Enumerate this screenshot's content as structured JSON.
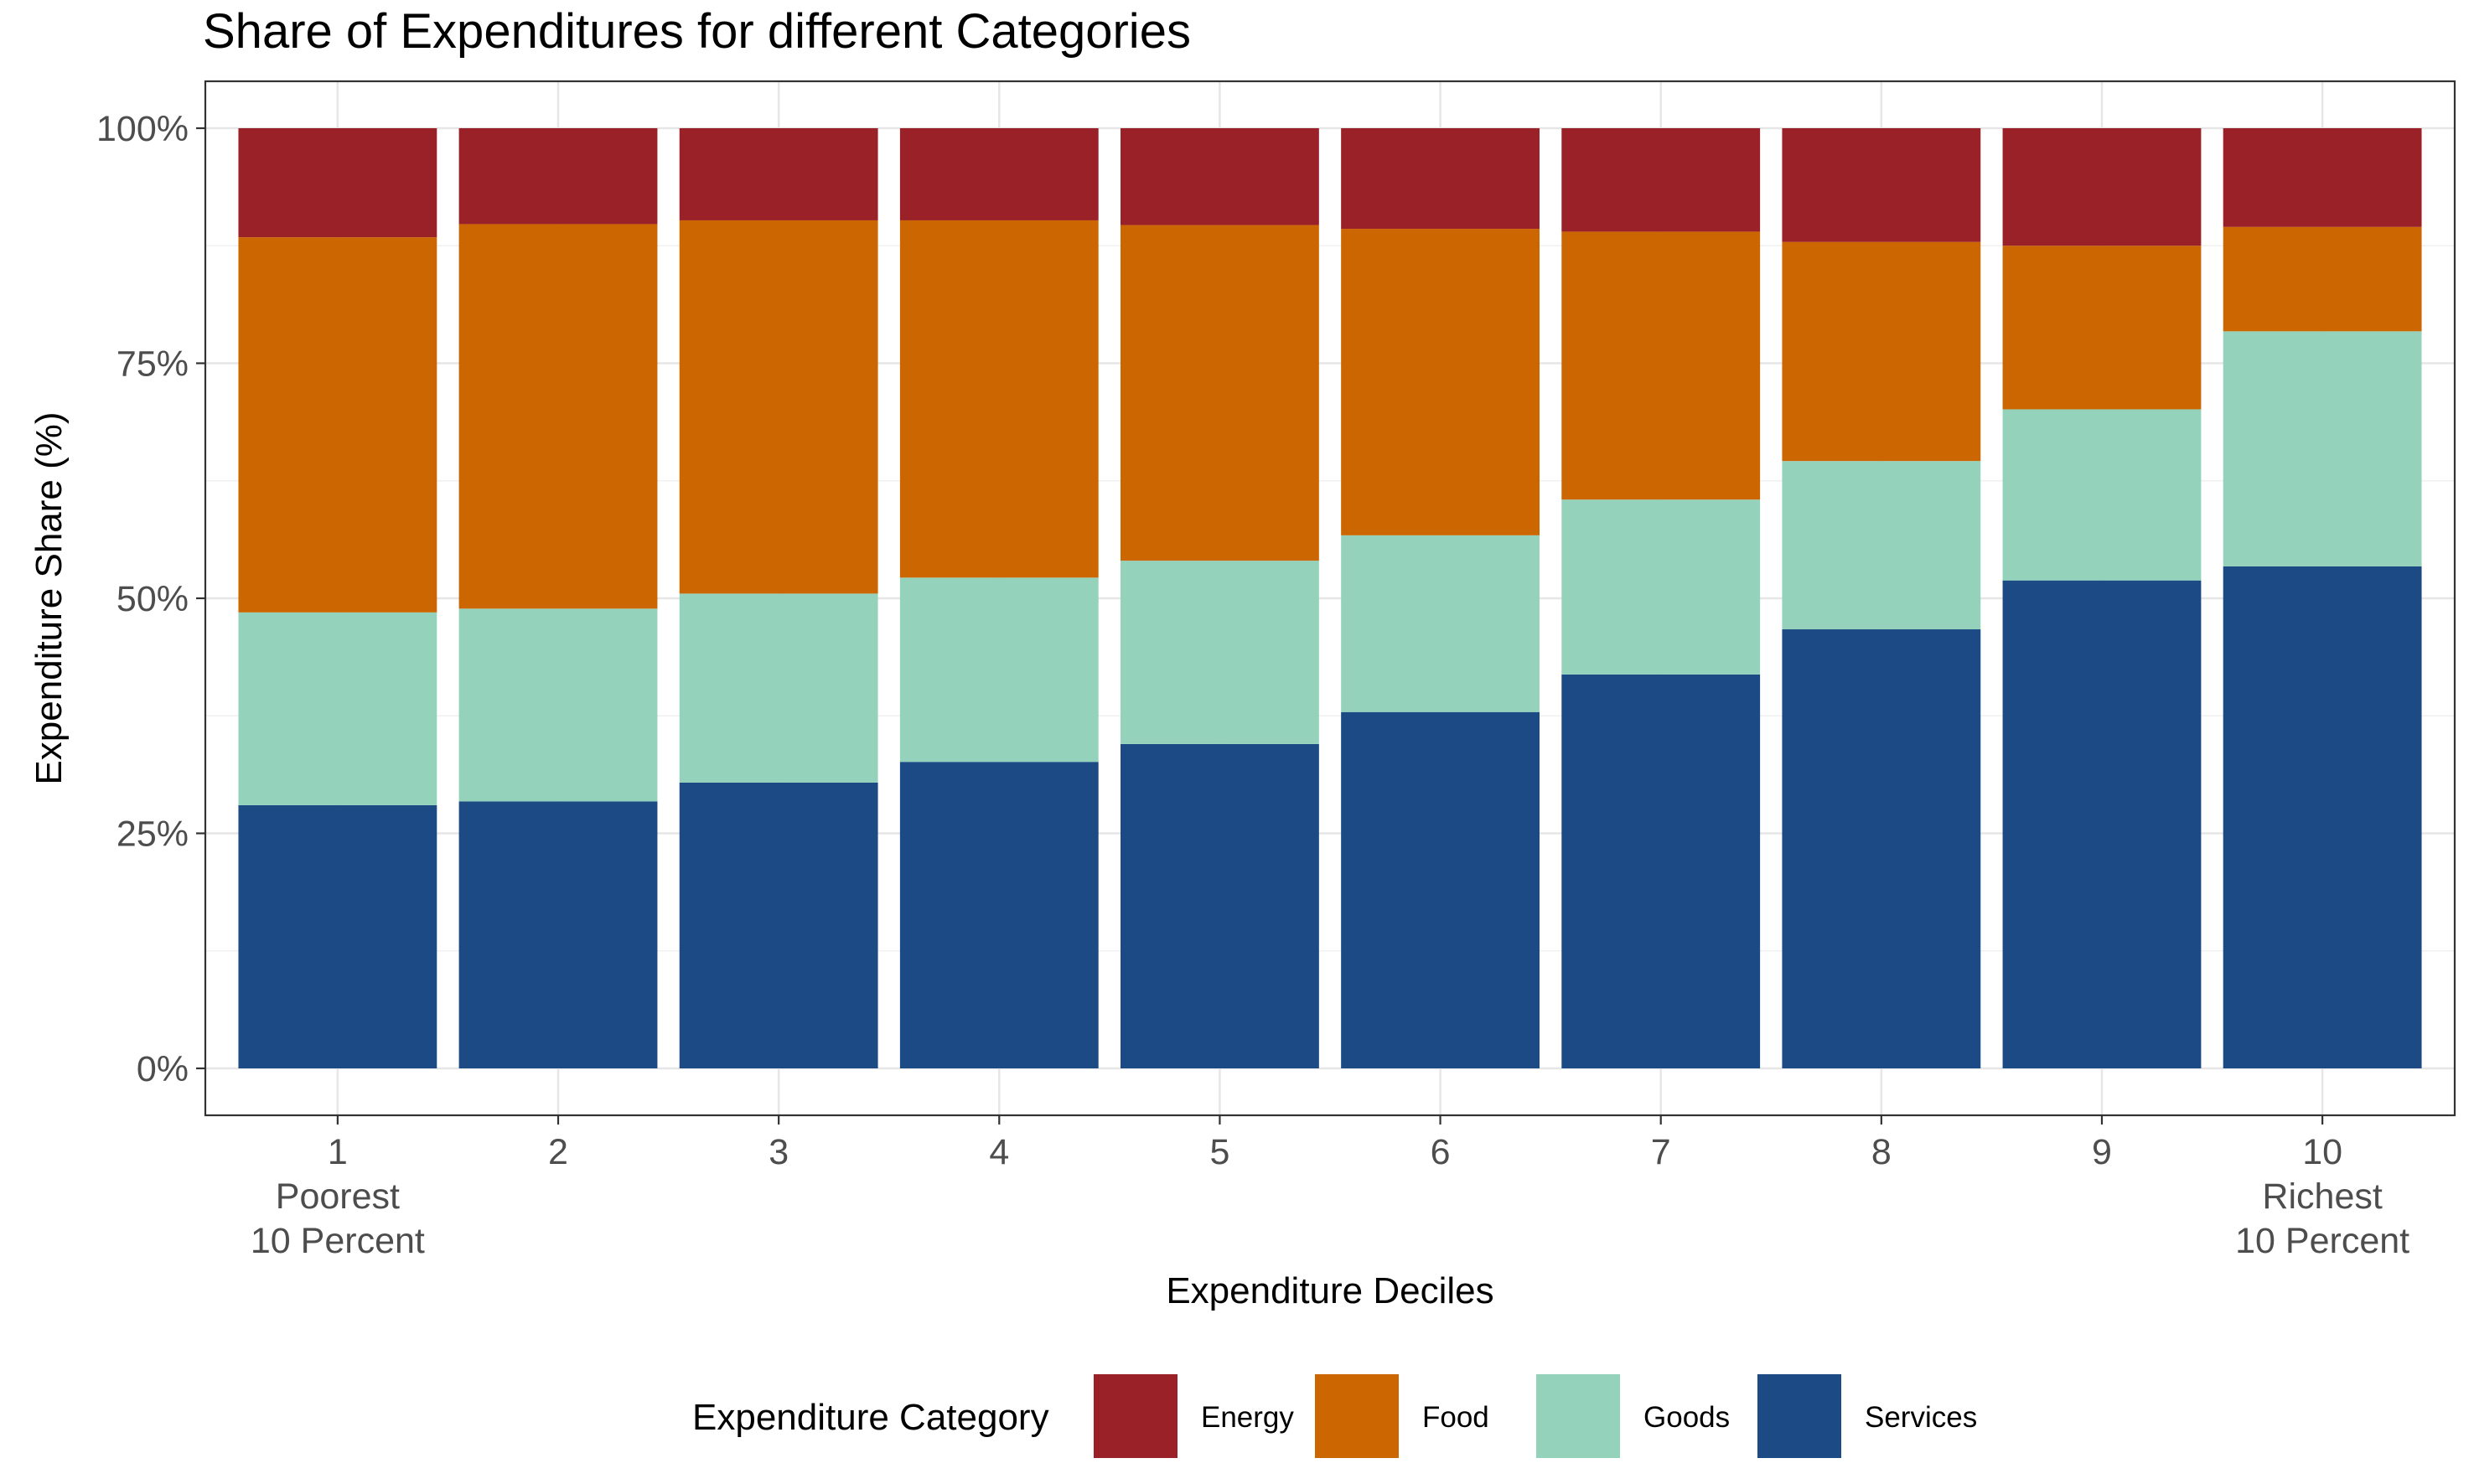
{
  "chart_data": {
    "type": "bar",
    "stacked": true,
    "title": "Share of Expenditures for different Categories",
    "xlabel": "Expenditure Deciles",
    "ylabel": "Expenditure Share (%)",
    "ylim": [
      0,
      1.05
    ],
    "y_ticks": [
      0,
      0.25,
      0.5,
      0.75,
      1.0
    ],
    "y_tick_labels": [
      "0%",
      "25%",
      "50%",
      "75%",
      "100%"
    ],
    "categories": [
      "1",
      "2",
      "3",
      "4",
      "5",
      "6",
      "7",
      "8",
      "9",
      "10"
    ],
    "category_sublabels": {
      "0": [
        "Poorest",
        "10 Percent"
      ],
      "9": [
        "Richest",
        "10 Percent"
      ]
    },
    "grid": true,
    "legend": {
      "title": "Expenditure Category",
      "position": "bottom"
    },
    "series": [
      {
        "name": "Services",
        "color": "#1b4a84",
        "values": [
          0.28,
          0.284,
          0.304,
          0.326,
          0.345,
          0.379,
          0.419,
          0.467,
          0.519,
          0.534
        ]
      },
      {
        "name": "Goods",
        "color": "#95d2bc",
        "values": [
          0.205,
          0.205,
          0.201,
          0.196,
          0.195,
          0.188,
          0.186,
          0.179,
          0.182,
          0.25
        ]
      },
      {
        "name": "Food",
        "color": "#cc6600",
        "values": [
          0.399,
          0.409,
          0.397,
          0.38,
          0.357,
          0.326,
          0.285,
          0.233,
          0.174,
          0.111
        ]
      },
      {
        "name": "Energy",
        "color": "#9b2128",
        "values": [
          0.116,
          0.102,
          0.098,
          0.098,
          0.103,
          0.107,
          0.11,
          0.121,
          0.125,
          0.105
        ]
      }
    ],
    "legend_order": [
      "Energy",
      "Food",
      "Goods",
      "Services"
    ]
  }
}
